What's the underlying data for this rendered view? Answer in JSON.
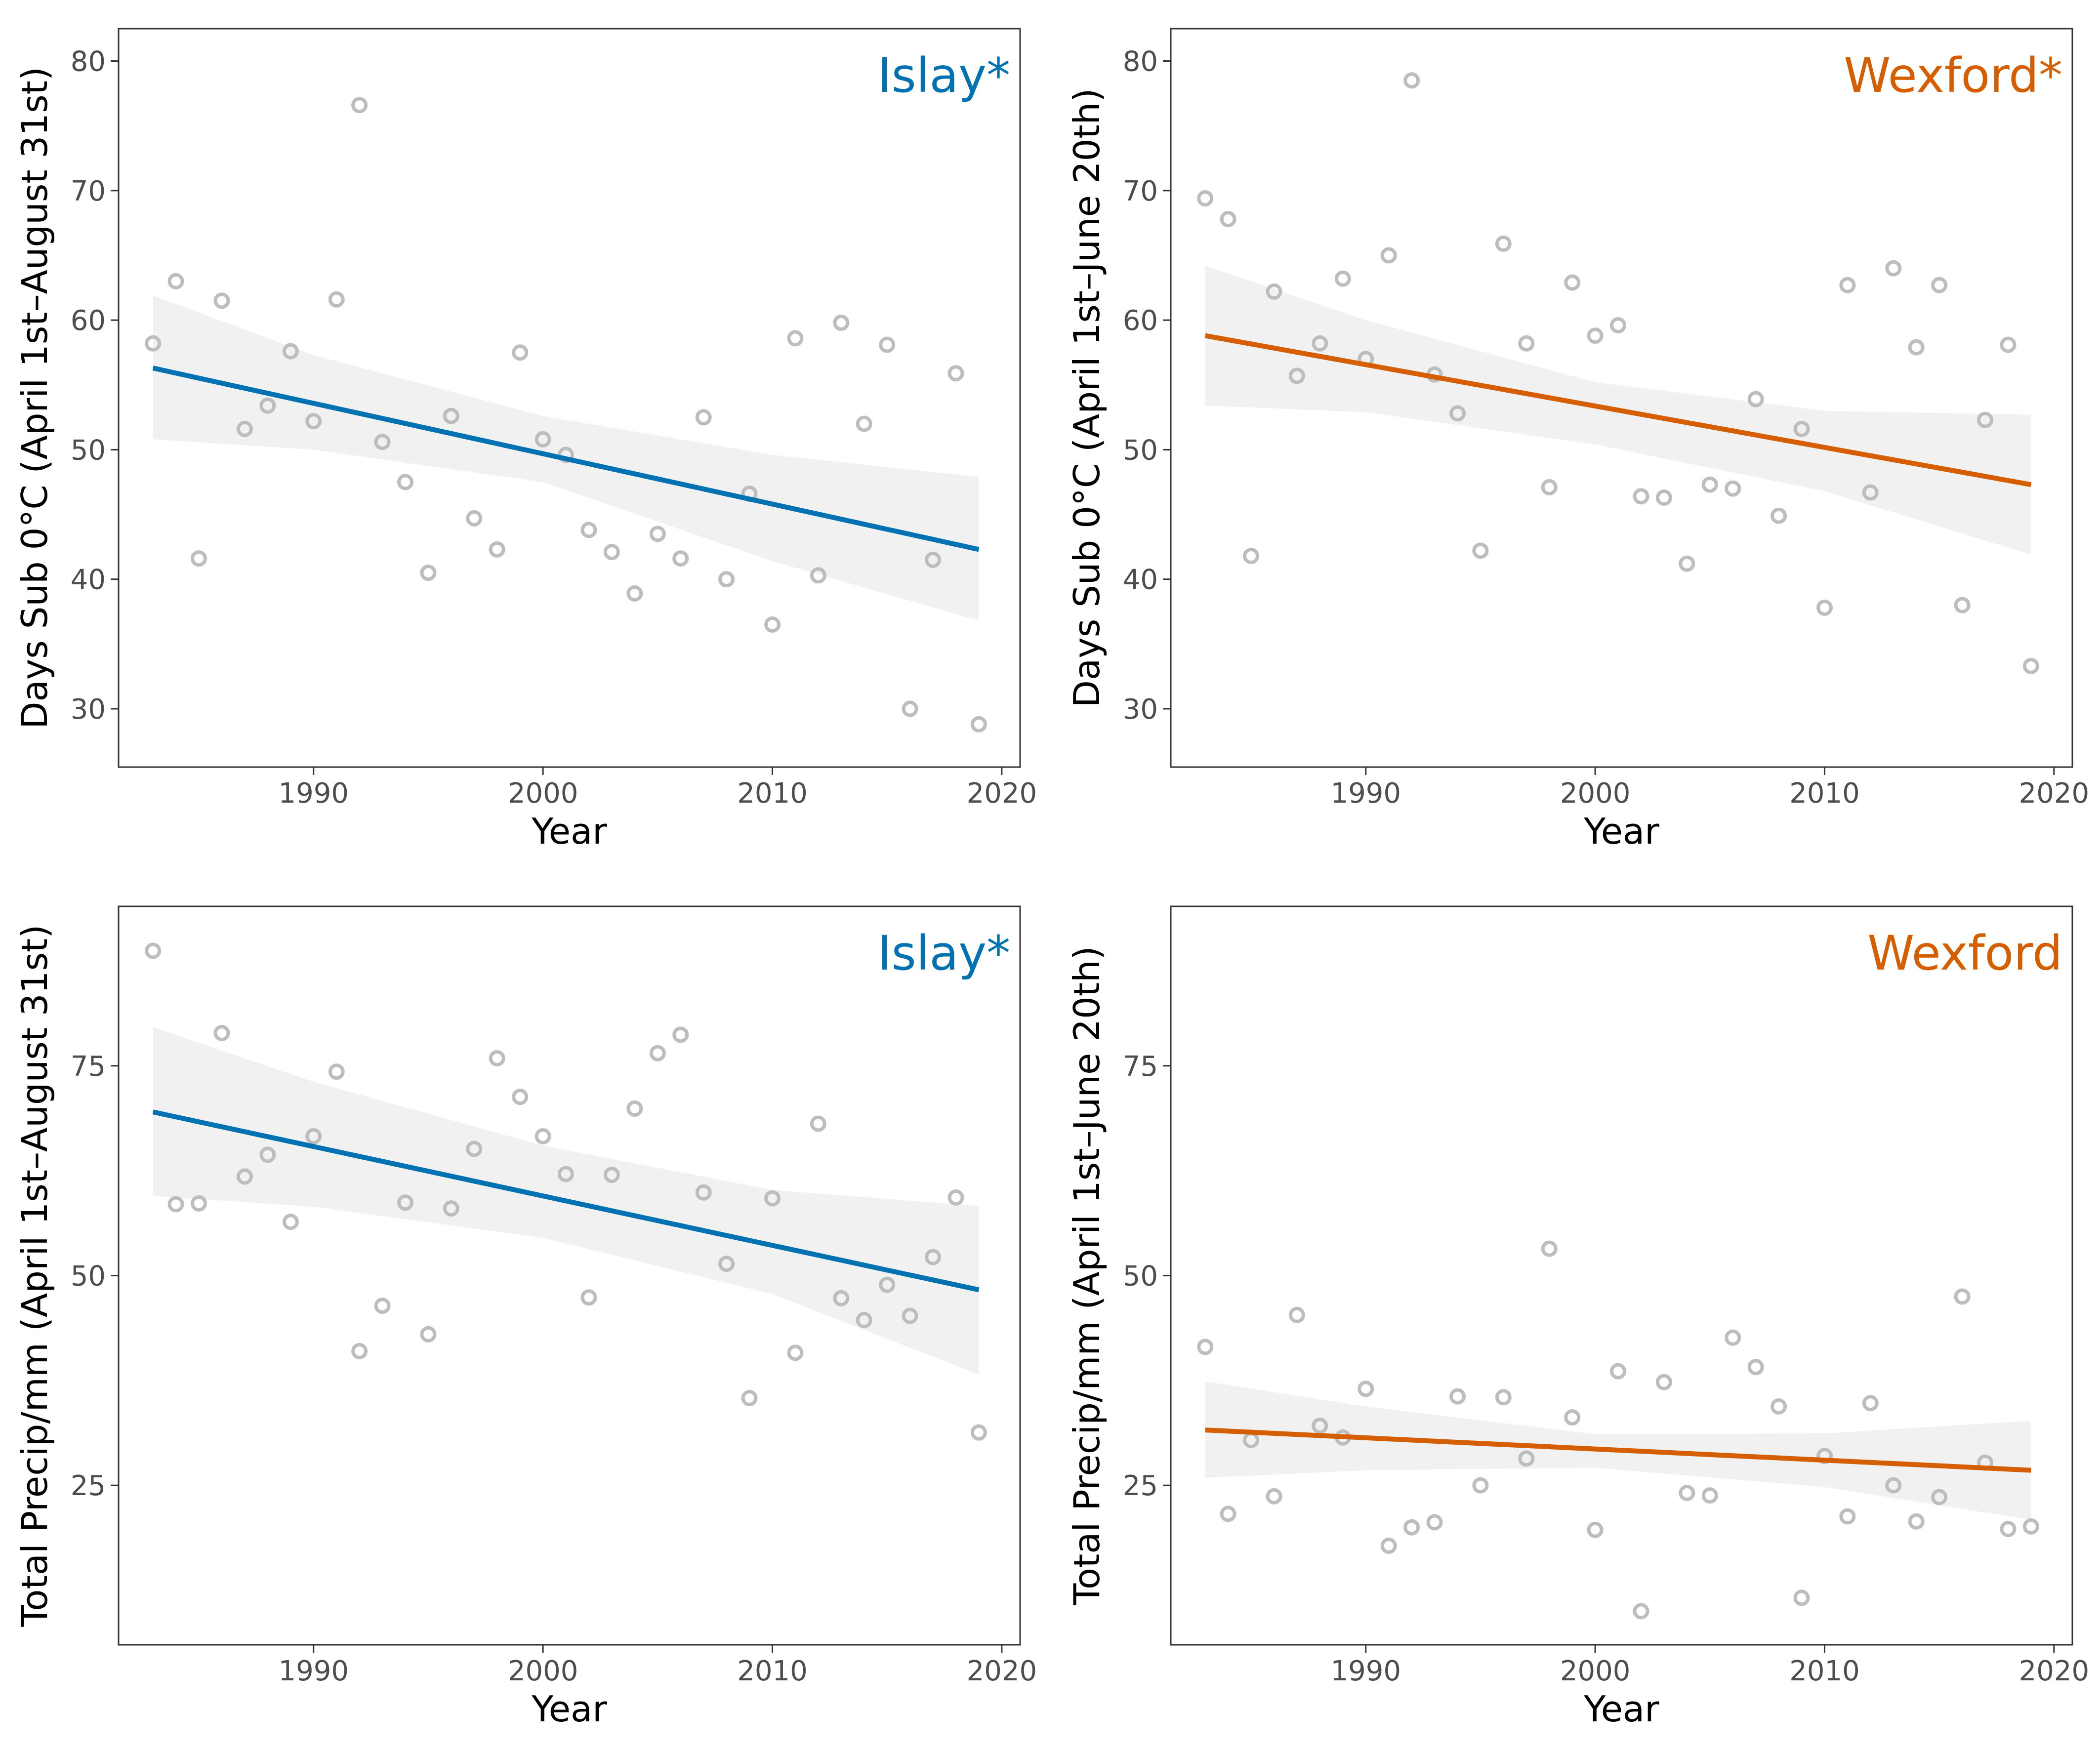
{
  "colors": {
    "islay": "#0072B2",
    "wexford": "#D55E00",
    "points": "#BDBDBD",
    "band": "#EBEBEB"
  },
  "chart_data": [
    {
      "type": "scatter",
      "panel_label": "Islay*",
      "color": "#0072B2",
      "xlabel": "Year",
      "ylabel": "Days Sub 0°C (April 1st–August 31st)",
      "xlim": [
        1981.5,
        2020.8
      ],
      "ylim": [
        25.5,
        82.5
      ],
      "xticks": [
        1990,
        2000,
        2010,
        2020
      ],
      "yticks": [
        30,
        40,
        50,
        60,
        70,
        80
      ],
      "x": [
        1983,
        1984,
        1985,
        1986,
        1987,
        1988,
        1989,
        1990,
        1991,
        1992,
        1993,
        1994,
        1995,
        1996,
        1997,
        1998,
        1999,
        2000,
        2001,
        2002,
        2003,
        2004,
        2005,
        2006,
        2007,
        2008,
        2009,
        2010,
        2011,
        2012,
        2013,
        2014,
        2015,
        2016,
        2017,
        2018,
        2019
      ],
      "y": [
        58.2,
        63,
        41.6,
        61.5,
        51.6,
        53.4,
        57.6,
        52.2,
        61.6,
        76.6,
        50.6,
        47.5,
        40.5,
        52.6,
        44.7,
        42.3,
        57.5,
        50.8,
        49.6,
        43.8,
        42.1,
        38.9,
        43.5,
        41.6,
        52.5,
        40,
        46.6,
        36.5,
        58.6,
        40.3,
        59.8,
        52,
        58.1,
        30,
        41.5,
        55.9,
        28.8
      ],
      "trend": {
        "x": [
          1983,
          2019
        ],
        "y": [
          56.3,
          42.3
        ]
      },
      "ci": {
        "x": [
          1983,
          1990,
          2000,
          2010,
          2019
        ],
        "upper": [
          61.9,
          57.3,
          52.6,
          49.6,
          47.9
        ],
        "lower": [
          50.8,
          50.0,
          47.5,
          41.4,
          36.8
        ]
      },
      "grid": false
    },
    {
      "type": "scatter",
      "panel_label": "Wexford*",
      "color": "#D55E00",
      "xlabel": "Year",
      "ylabel": "Days Sub 0°C (April 1st–June 20th)",
      "xlim": [
        1981.5,
        2020.8
      ],
      "ylim": [
        25.5,
        82.5
      ],
      "xticks": [
        1990,
        2000,
        2010,
        2020
      ],
      "yticks": [
        30,
        40,
        50,
        60,
        70,
        80
      ],
      "x": [
        1983,
        1984,
        1985,
        1986,
        1987,
        1988,
        1989,
        1990,
        1991,
        1992,
        1993,
        1994,
        1995,
        1996,
        1997,
        1998,
        1999,
        2000,
        2001,
        2002,
        2003,
        2004,
        2005,
        2006,
        2007,
        2008,
        2009,
        2010,
        2011,
        2012,
        2013,
        2014,
        2015,
        2016,
        2017,
        2018,
        2019
      ],
      "y": [
        69.4,
        67.8,
        41.8,
        62.2,
        55.7,
        58.2,
        63.2,
        57,
        65,
        78.5,
        55.8,
        52.8,
        42.2,
        65.9,
        58.2,
        47.1,
        62.9,
        58.8,
        59.6,
        46.4,
        46.3,
        41.2,
        47.3,
        47,
        53.9,
        44.9,
        51.6,
        37.8,
        62.7,
        46.7,
        64,
        57.9,
        62.7,
        38,
        52.3,
        58.1,
        33.3
      ],
      "trend": {
        "x": [
          1983,
          2019
        ],
        "y": [
          58.8,
          47.3
        ]
      },
      "ci": {
        "x": [
          1983,
          1990,
          2000,
          2010,
          2019
        ],
        "upper": [
          64.2,
          60.0,
          55.2,
          53.0,
          52.7
        ],
        "lower": [
          53.4,
          52.9,
          50.4,
          46.8,
          41.9
        ]
      },
      "grid": false
    },
    {
      "type": "scatter",
      "panel_label": "Islay*",
      "color": "#0072B2",
      "xlabel": "Year",
      "ylabel": "Total Precip/mm (April 1st–August 31st)",
      "xlim": [
        1981.5,
        2020.8
      ],
      "ylim": [
        6,
        94
      ],
      "xticks": [
        1990,
        2000,
        2010,
        2020
      ],
      "yticks": [
        25,
        50,
        75
      ],
      "x": [
        1983,
        1984,
        1985,
        1986,
        1987,
        1988,
        1989,
        1990,
        1991,
        1992,
        1993,
        1994,
        1995,
        1996,
        1997,
        1998,
        1999,
        2000,
        2001,
        2002,
        2003,
        2004,
        2005,
        2006,
        2007,
        2008,
        2009,
        2010,
        2011,
        2012,
        2013,
        2014,
        2015,
        2016,
        2017,
        2018,
        2019
      ],
      "y": [
        88.7,
        58.5,
        58.6,
        78.9,
        61.8,
        64.4,
        56.4,
        66.6,
        74.3,
        41,
        46.4,
        58.7,
        43,
        58,
        65.1,
        75.9,
        71.3,
        66.6,
        62.1,
        47.4,
        62,
        69.9,
        76.5,
        78.7,
        59.9,
        51.4,
        35.4,
        59.2,
        40.8,
        68.1,
        47.3,
        44.7,
        48.9,
        45.2,
        52.2,
        59.3,
        31.3
      ],
      "trend": {
        "x": [
          1983,
          2019
        ],
        "y": [
          69.5,
          48.3
        ]
      },
      "ci": {
        "x": [
          1983,
          1990,
          2000,
          2010,
          2019
        ],
        "upper": [
          79.6,
          73.1,
          65.5,
          60.2,
          58.3
        ],
        "lower": [
          59.5,
          58.2,
          54.5,
          47.8,
          38.2
        ]
      },
      "grid": false
    },
    {
      "type": "scatter",
      "panel_label": "Wexford",
      "color": "#D55E00",
      "xlabel": "Year",
      "ylabel": "Total Precip/mm (April 1st–June 20th)",
      "xlim": [
        1981.5,
        2020.8
      ],
      "ylim": [
        6,
        94
      ],
      "xticks": [
        1990,
        2000,
        2010,
        2020
      ],
      "yticks": [
        25,
        50,
        75
      ],
      "x": [
        1983,
        1984,
        1985,
        1986,
        1987,
        1988,
        1989,
        1990,
        1991,
        1992,
        1993,
        1994,
        1995,
        1996,
        1997,
        1998,
        1999,
        2000,
        2001,
        2002,
        2003,
        2004,
        2005,
        2006,
        2007,
        2008,
        2009,
        2010,
        2011,
        2012,
        2013,
        2014,
        2015,
        2016,
        2017,
        2018,
        2019
      ],
      "y": [
        41.5,
        21.6,
        30.4,
        23.7,
        45.3,
        32.1,
        30.7,
        36.5,
        17.8,
        20,
        20.6,
        35.6,
        25,
        35.5,
        28.2,
        53.2,
        33.1,
        19.7,
        38.6,
        10,
        37.3,
        24.1,
        23.8,
        42.6,
        39.1,
        34.4,
        11.6,
        28.5,
        21.3,
        34.8,
        25,
        20.7,
        23.6,
        47.5,
        27.7,
        19.8,
        20.1
      ],
      "trend": {
        "x": [
          1983,
          2019
        ],
        "y": [
          31.6,
          26.8
        ]
      },
      "ci": {
        "x": [
          1983,
          1990,
          2000,
          2010,
          2019
        ],
        "upper": [
          37.4,
          34.4,
          31.1,
          31.2,
          32.7
        ],
        "lower": [
          25.9,
          26.8,
          27.1,
          24.8,
          20.9
        ]
      },
      "grid": false
    }
  ]
}
